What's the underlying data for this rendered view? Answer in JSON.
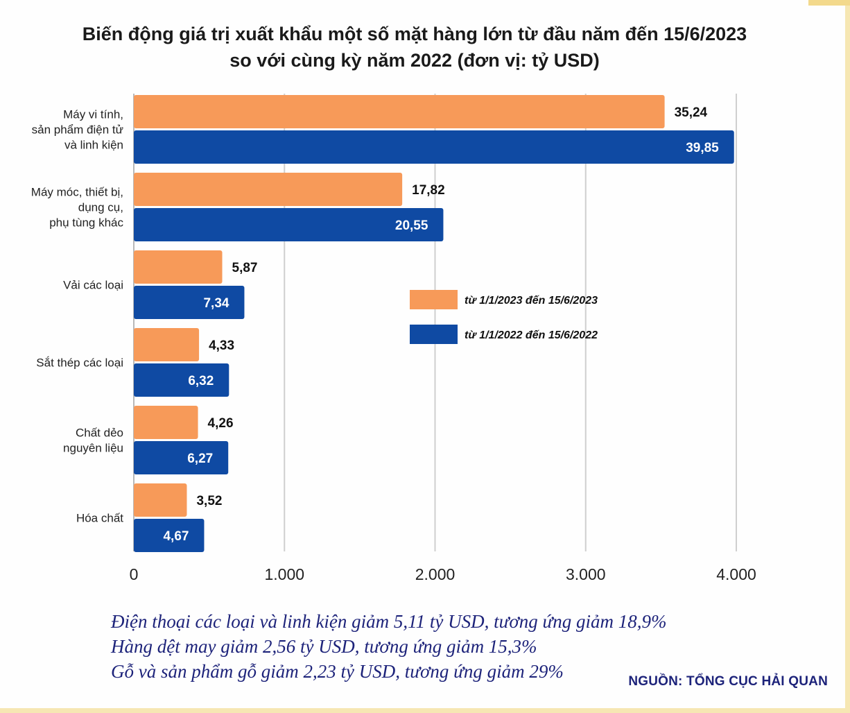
{
  "title": {
    "line1": "Biến động giá trị xuất khẩu một số mặt hàng lớn từ đầu năm đến 15/6/2023",
    "line2": "so với cùng kỳ năm 2022 (đơn vị: tỷ USD)"
  },
  "chart_data": {
    "type": "bar",
    "orientation": "horizontal",
    "categories": [
      [
        "Máy vi tính,",
        "sản phẩm điện tử",
        "và linh kiện"
      ],
      [
        "Máy móc, thiết bị,",
        "dụng cụ,",
        "phụ tùng khác"
      ],
      [
        "Vải các loại"
      ],
      [
        "Sắt thép các loại"
      ],
      [
        "Chất dẻo",
        "nguyên liệu"
      ],
      [
        "Hóa chất"
      ]
    ],
    "series": [
      {
        "name": "từ 1/1/2023 đến 15/6/2023",
        "color": "#f79a59",
        "values": [
          3524,
          1782,
          587,
          433,
          426,
          352
        ],
        "labels": [
          "35,24",
          "17,82",
          "5,87",
          "4,33",
          "4,26",
          "3,52"
        ]
      },
      {
        "name": "từ 1/1/2022 đến 15/6/2022",
        "color": "#0f4aa3",
        "values": [
          3985,
          2055,
          734,
          632,
          627,
          467
        ],
        "labels": [
          "39,85",
          "20,55",
          "7,34",
          "6,32",
          "6,27",
          "4,67"
        ]
      }
    ],
    "x_ticks": [
      0,
      1000,
      2000,
      3000,
      4000
    ],
    "x_tick_labels": [
      "0",
      "1.000",
      "2.000",
      "3.000",
      "4.000"
    ],
    "xlim": [
      0,
      4000
    ],
    "grid": "vertical",
    "legend_position": "right-middle"
  },
  "notes": [
    "Điện thoại các loại và linh kiện giảm 5,11 tỷ USD, tương ứng giảm 18,9%",
    "Hàng dệt may giảm 2,56 tỷ USD, tương ứng giảm 15,3%",
    "Gỗ và sản phẩm gỗ giảm 2,23 tỷ USD, tương ứng giảm 29%"
  ],
  "source": "NGUỒN: TỔNG CỤC HẢI QUAN"
}
